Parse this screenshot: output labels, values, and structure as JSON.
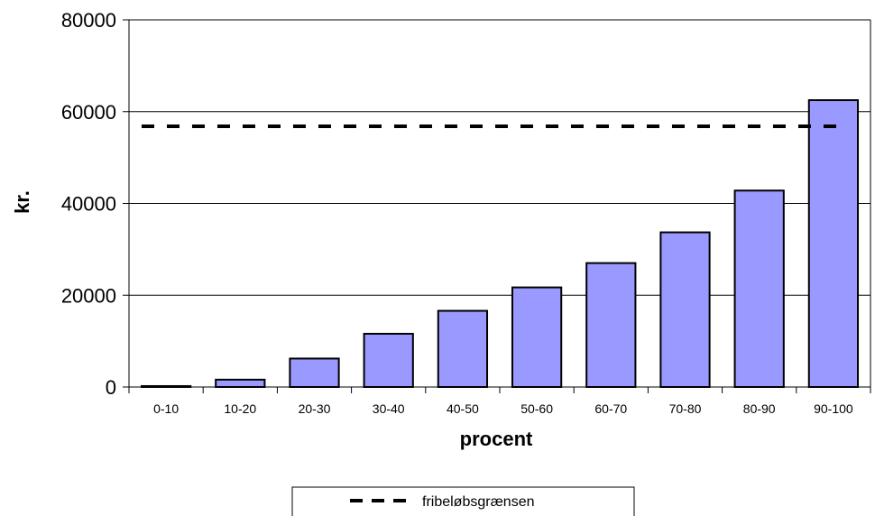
{
  "chart_data": {
    "type": "bar",
    "title": "",
    "xlabel": "procent",
    "ylabel": "kr.",
    "categories": [
      "0-10",
      "10-20",
      "20-30",
      "30-40",
      "40-50",
      "50-60",
      "60-70",
      "70-80",
      "80-90",
      "90-100"
    ],
    "series": [
      {
        "values": [
          200,
          1600,
          6200,
          11600,
          16600,
          21700,
          27000,
          33700,
          42800,
          62500
        ]
      }
    ],
    "reference_line": {
      "name": "fribeløbsgrænsen",
      "value": 56800,
      "style": "dashed"
    },
    "ylim": [
      0,
      80000
    ],
    "yticks": [
      "0",
      "20000",
      "40000",
      "60000",
      "80000"
    ],
    "grid": "horizontal",
    "legend_position": "bottom",
    "colors": {
      "bar_fill": "#9999ff",
      "bar_stroke": "#000000",
      "line": "#000000",
      "grid": "#000000"
    }
  }
}
